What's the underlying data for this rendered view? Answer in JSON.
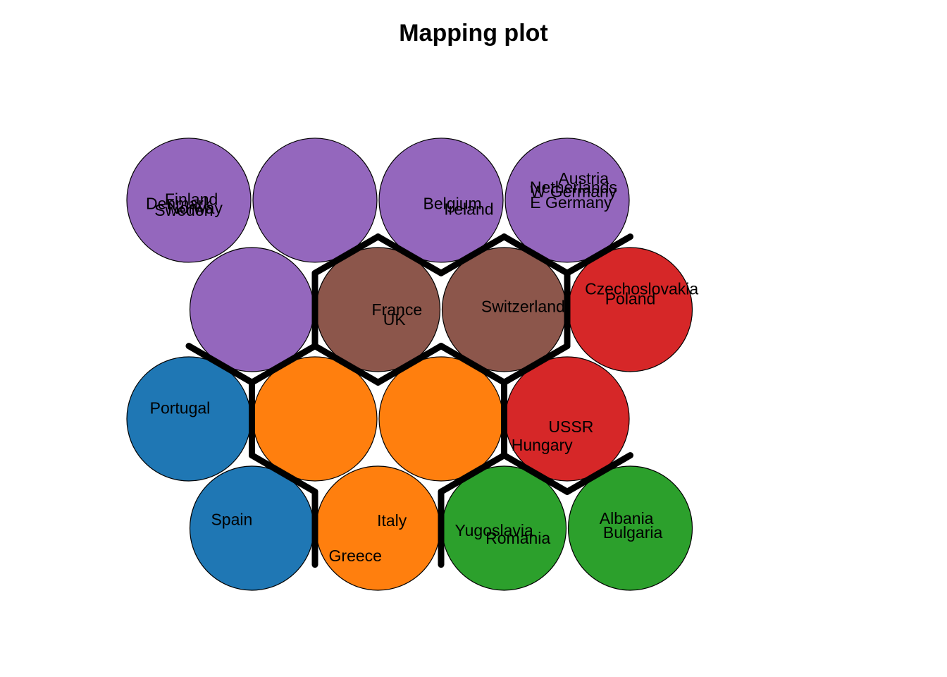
{
  "title": "Mapping plot",
  "chart_data": {
    "type": "som-mapping",
    "title": "Mapping plot",
    "grid": {
      "xdim": 4,
      "ydim": 4,
      "topology": "hexagonal"
    },
    "colors": {
      "blue": "#1f77b4",
      "orange": "#ff7f0e",
      "green": "#2ca02c",
      "red": "#d62728",
      "purple": "#9467bd",
      "brown": "#8c564b"
    },
    "units": [
      {
        "row": 1,
        "col": 1,
        "cluster": "blue"
      },
      {
        "row": 1,
        "col": 2,
        "cluster": "orange"
      },
      {
        "row": 1,
        "col": 3,
        "cluster": "green"
      },
      {
        "row": 1,
        "col": 4,
        "cluster": "green"
      },
      {
        "row": 2,
        "col": 1,
        "cluster": "blue"
      },
      {
        "row": 2,
        "col": 2,
        "cluster": "orange"
      },
      {
        "row": 2,
        "col": 3,
        "cluster": "orange"
      },
      {
        "row": 2,
        "col": 4,
        "cluster": "red"
      },
      {
        "row": 3,
        "col": 1,
        "cluster": "purple"
      },
      {
        "row": 3,
        "col": 2,
        "cluster": "brown"
      },
      {
        "row": 3,
        "col": 3,
        "cluster": "brown"
      },
      {
        "row": 3,
        "col": 4,
        "cluster": "red"
      },
      {
        "row": 4,
        "col": 1,
        "cluster": "purple"
      },
      {
        "row": 4,
        "col": 2,
        "cluster": "purple"
      },
      {
        "row": 4,
        "col": 3,
        "cluster": "purple"
      },
      {
        "row": 4,
        "col": 4,
        "cluster": "purple"
      }
    ],
    "labels": [
      {
        "text": "Spain",
        "unit": [
          1,
          1
        ],
        "dx": -0.16,
        "dy": 0.08
      },
      {
        "text": "Italy",
        "unit": [
          1,
          2
        ],
        "dx": 0.11,
        "dy": 0.07
      },
      {
        "text": "Greece",
        "unit": [
          1,
          2
        ],
        "dx": -0.18,
        "dy": -0.25
      },
      {
        "text": "Yugoslavia",
        "unit": [
          1,
          3
        ],
        "dx": -0.08,
        "dy": -0.02
      },
      {
        "text": "Romania",
        "unit": [
          1,
          3
        ],
        "dx": 0.11,
        "dy": -0.09
      },
      {
        "text": "Albania",
        "unit": [
          1,
          4
        ],
        "dx": -0.03,
        "dy": 0.09
      },
      {
        "text": "Bulgaria",
        "unit": [
          1,
          4
        ],
        "dx": 0.02,
        "dy": -0.04
      },
      {
        "text": "Portugal",
        "unit": [
          2,
          1
        ],
        "dx": -0.07,
        "dy": 0.1
      },
      {
        "text": "USSR",
        "unit": [
          2,
          4
        ],
        "dx": 0.03,
        "dy": -0.07
      },
      {
        "text": "Hungary",
        "unit": [
          2,
          4
        ],
        "dx": -0.2,
        "dy": -0.24
      },
      {
        "text": "France",
        "unit": [
          3,
          2
        ],
        "dx": 0.15,
        "dy": 0.0
      },
      {
        "text": "UK",
        "unit": [
          3,
          2
        ],
        "dx": 0.13,
        "dy": -0.09
      },
      {
        "text": "Switzerland",
        "unit": [
          3,
          3
        ],
        "dx": 0.15,
        "dy": 0.03
      },
      {
        "text": "Czechoslovakia",
        "unit": [
          3,
          4
        ],
        "dx": 0.09,
        "dy": 0.19
      },
      {
        "text": "Poland",
        "unit": [
          3,
          4
        ],
        "dx": 0.0,
        "dy": 0.1
      },
      {
        "text": "Finland",
        "unit": [
          4,
          1
        ],
        "dx": 0.02,
        "dy": 0.01
      },
      {
        "text": "Denmark",
        "unit": [
          4,
          1
        ],
        "dx": -0.08,
        "dy": -0.03
      },
      {
        "text": "Norway",
        "unit": [
          4,
          1
        ],
        "dx": 0.05,
        "dy": -0.07
      },
      {
        "text": "Sweden",
        "unit": [
          4,
          1
        ],
        "dx": -0.04,
        "dy": -0.09
      },
      {
        "text": "Belgium",
        "unit": [
          4,
          3
        ],
        "dx": 0.09,
        "dy": -0.03
      },
      {
        "text": "Ireland",
        "unit": [
          4,
          3
        ],
        "dx": 0.22,
        "dy": -0.08
      },
      {
        "text": "Austria",
        "unit": [
          4,
          4
        ],
        "dx": 0.13,
        "dy": 0.2
      },
      {
        "text": "Netherlands",
        "unit": [
          4,
          4
        ],
        "dx": 0.05,
        "dy": 0.12
      },
      {
        "text": "W Germany",
        "unit": [
          4,
          4
        ],
        "dx": 0.05,
        "dy": 0.08
      },
      {
        "text": "E Germany",
        "unit": [
          4,
          4
        ],
        "dx": 0.03,
        "dy": -0.02
      }
    ],
    "cluster_boundaries": true,
    "grid_lines": false,
    "axes": false,
    "legend": "none"
  }
}
